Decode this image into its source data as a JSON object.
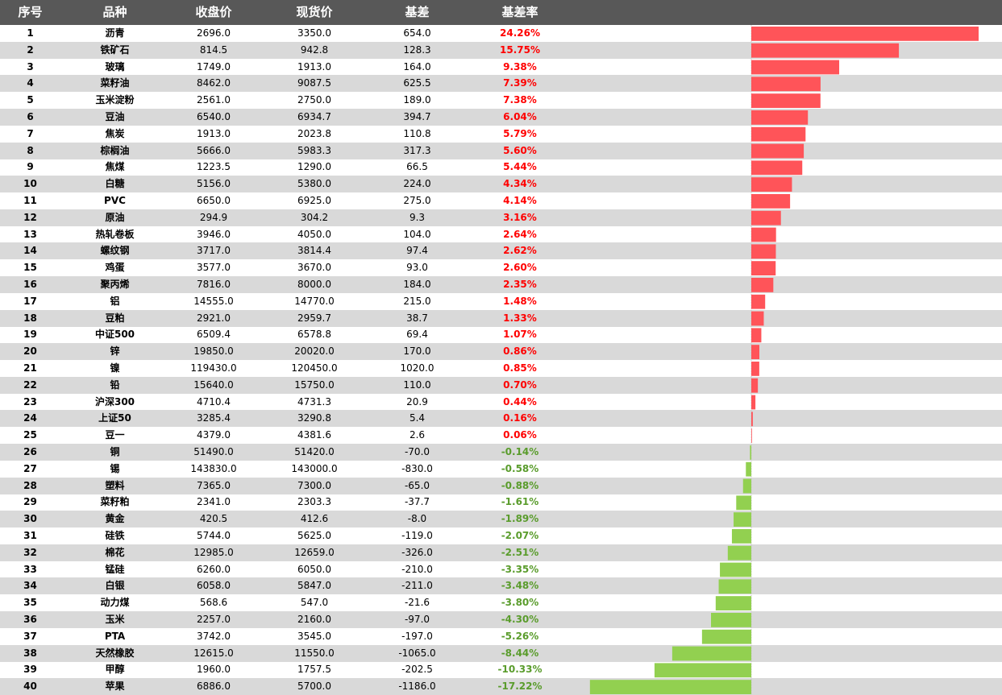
{
  "headers": {
    "idx": "序号",
    "name": "品种",
    "close": "收盘价",
    "spot": "现货价",
    "basis": "基差",
    "rate": "基差率"
  },
  "colors": {
    "header_bg": "#585858",
    "alt_row": "#d9d9d9",
    "positive_bar": "#ff5459",
    "negative_bar": "#92d050",
    "positive_text": "#ff0000",
    "negative_text": "#5a9c2c"
  },
  "rows": [
    {
      "idx": "1",
      "name": "沥青",
      "close": "2696.0",
      "spot": "3350.0",
      "basis": "654.0",
      "rate": "24.26%"
    },
    {
      "idx": "2",
      "name": "铁矿石",
      "close": "814.5",
      "spot": "942.8",
      "basis": "128.3",
      "rate": "15.75%"
    },
    {
      "idx": "3",
      "name": "玻璃",
      "close": "1749.0",
      "spot": "1913.0",
      "basis": "164.0",
      "rate": "9.38%"
    },
    {
      "idx": "4",
      "name": "菜籽油",
      "close": "8462.0",
      "spot": "9087.5",
      "basis": "625.5",
      "rate": "7.39%"
    },
    {
      "idx": "5",
      "name": "玉米淀粉",
      "close": "2561.0",
      "spot": "2750.0",
      "basis": "189.0",
      "rate": "7.38%"
    },
    {
      "idx": "6",
      "name": "豆油",
      "close": "6540.0",
      "spot": "6934.7",
      "basis": "394.7",
      "rate": "6.04%"
    },
    {
      "idx": "7",
      "name": "焦炭",
      "close": "1913.0",
      "spot": "2023.8",
      "basis": "110.8",
      "rate": "5.79%"
    },
    {
      "idx": "8",
      "name": "棕榈油",
      "close": "5666.0",
      "spot": "5983.3",
      "basis": "317.3",
      "rate": "5.60%"
    },
    {
      "idx": "9",
      "name": "焦煤",
      "close": "1223.5",
      "spot": "1290.0",
      "basis": "66.5",
      "rate": "5.44%"
    },
    {
      "idx": "10",
      "name": "白糖",
      "close": "5156.0",
      "spot": "5380.0",
      "basis": "224.0",
      "rate": "4.34%"
    },
    {
      "idx": "11",
      "name": "PVC",
      "close": "6650.0",
      "spot": "6925.0",
      "basis": "275.0",
      "rate": "4.14%"
    },
    {
      "idx": "12",
      "name": "原油",
      "close": "294.9",
      "spot": "304.2",
      "basis": "9.3",
      "rate": "3.16%"
    },
    {
      "idx": "13",
      "name": "热轧卷板",
      "close": "3946.0",
      "spot": "4050.0",
      "basis": "104.0",
      "rate": "2.64%"
    },
    {
      "idx": "14",
      "name": "螺纹钢",
      "close": "3717.0",
      "spot": "3814.4",
      "basis": "97.4",
      "rate": "2.62%"
    },
    {
      "idx": "15",
      "name": "鸡蛋",
      "close": "3577.0",
      "spot": "3670.0",
      "basis": "93.0",
      "rate": "2.60%"
    },
    {
      "idx": "16",
      "name": "聚丙烯",
      "close": "7816.0",
      "spot": "8000.0",
      "basis": "184.0",
      "rate": "2.35%"
    },
    {
      "idx": "17",
      "name": "铝",
      "close": "14555.0",
      "spot": "14770.0",
      "basis": "215.0",
      "rate": "1.48%"
    },
    {
      "idx": "18",
      "name": "豆粕",
      "close": "2921.0",
      "spot": "2959.7",
      "basis": "38.7",
      "rate": "1.33%"
    },
    {
      "idx": "19",
      "name": "中证500",
      "close": "6509.4",
      "spot": "6578.8",
      "basis": "69.4",
      "rate": "1.07%"
    },
    {
      "idx": "20",
      "name": "锌",
      "close": "19850.0",
      "spot": "20020.0",
      "basis": "170.0",
      "rate": "0.86%"
    },
    {
      "idx": "21",
      "name": "镍",
      "close": "119430.0",
      "spot": "120450.0",
      "basis": "1020.0",
      "rate": "0.85%"
    },
    {
      "idx": "22",
      "name": "铅",
      "close": "15640.0",
      "spot": "15750.0",
      "basis": "110.0",
      "rate": "0.70%"
    },
    {
      "idx": "23",
      "name": "沪深300",
      "close": "4710.4",
      "spot": "4731.3",
      "basis": "20.9",
      "rate": "0.44%"
    },
    {
      "idx": "24",
      "name": "上证50",
      "close": "3285.4",
      "spot": "3290.8",
      "basis": "5.4",
      "rate": "0.16%"
    },
    {
      "idx": "25",
      "name": "豆一",
      "close": "4379.0",
      "spot": "4381.6",
      "basis": "2.6",
      "rate": "0.06%"
    },
    {
      "idx": "26",
      "name": "铜",
      "close": "51490.0",
      "spot": "51420.0",
      "basis": "-70.0",
      "rate": "-0.14%"
    },
    {
      "idx": "27",
      "name": "锡",
      "close": "143830.0",
      "spot": "143000.0",
      "basis": "-830.0",
      "rate": "-0.58%"
    },
    {
      "idx": "28",
      "name": "塑料",
      "close": "7365.0",
      "spot": "7300.0",
      "basis": "-65.0",
      "rate": "-0.88%"
    },
    {
      "idx": "29",
      "name": "菜籽粕",
      "close": "2341.0",
      "spot": "2303.3",
      "basis": "-37.7",
      "rate": "-1.61%"
    },
    {
      "idx": "30",
      "name": "黄金",
      "close": "420.5",
      "spot": "412.6",
      "basis": "-8.0",
      "rate": "-1.89%"
    },
    {
      "idx": "31",
      "name": "硅铁",
      "close": "5744.0",
      "spot": "5625.0",
      "basis": "-119.0",
      "rate": "-2.07%"
    },
    {
      "idx": "32",
      "name": "棉花",
      "close": "12985.0",
      "spot": "12659.0",
      "basis": "-326.0",
      "rate": "-2.51%"
    },
    {
      "idx": "33",
      "name": "锰硅",
      "close": "6260.0",
      "spot": "6050.0",
      "basis": "-210.0",
      "rate": "-3.35%"
    },
    {
      "idx": "34",
      "name": "白银",
      "close": "6058.0",
      "spot": "5847.0",
      "basis": "-211.0",
      "rate": "-3.48%"
    },
    {
      "idx": "35",
      "name": "动力煤",
      "close": "568.6",
      "spot": "547.0",
      "basis": "-21.6",
      "rate": "-3.80%"
    },
    {
      "idx": "36",
      "name": "玉米",
      "close": "2257.0",
      "spot": "2160.0",
      "basis": "-97.0",
      "rate": "-4.30%"
    },
    {
      "idx": "37",
      "name": "PTA",
      "close": "3742.0",
      "spot": "3545.0",
      "basis": "-197.0",
      "rate": "-5.26%"
    },
    {
      "idx": "38",
      "name": "天然橡胶",
      "close": "12615.0",
      "spot": "11550.0",
      "basis": "-1065.0",
      "rate": "-8.44%"
    },
    {
      "idx": "39",
      "name": "甲醇",
      "close": "1960.0",
      "spot": "1757.5",
      "basis": "-202.5",
      "rate": "-10.33%"
    },
    {
      "idx": "40",
      "name": "苹果",
      "close": "6886.0",
      "spot": "5700.0",
      "basis": "-1186.0",
      "rate": "-17.22%"
    }
  ],
  "chart_data": {
    "type": "bar",
    "orientation": "horizontal",
    "categories": [
      "沥青",
      "铁矿石",
      "玻璃",
      "菜籽油",
      "玉米淀粉",
      "豆油",
      "焦炭",
      "棕榈油",
      "焦煤",
      "白糖",
      "PVC",
      "原油",
      "热轧卷板",
      "螺纹钢",
      "鸡蛋",
      "聚丙烯",
      "铝",
      "豆粕",
      "中证500",
      "锌",
      "镍",
      "铅",
      "沪深300",
      "上证50",
      "豆一",
      "铜",
      "锡",
      "塑料",
      "菜籽粕",
      "黄金",
      "硅铁",
      "棉花",
      "锰硅",
      "白银",
      "动力煤",
      "玉米",
      "PTA",
      "天然橡胶",
      "甲醇",
      "苹果"
    ],
    "values": [
      24.26,
      15.75,
      9.38,
      7.39,
      7.38,
      6.04,
      5.79,
      5.6,
      5.44,
      4.34,
      4.14,
      3.16,
      2.64,
      2.62,
      2.6,
      2.35,
      1.48,
      1.33,
      1.07,
      0.86,
      0.85,
      0.7,
      0.44,
      0.16,
      0.06,
      -0.14,
      -0.58,
      -0.88,
      -1.61,
      -1.89,
      -2.07,
      -2.51,
      -3.35,
      -3.48,
      -3.8,
      -4.3,
      -5.26,
      -8.44,
      -10.33,
      -17.22
    ],
    "xlim": [
      -17.22,
      24.26
    ],
    "grid": false,
    "legend": "none"
  }
}
